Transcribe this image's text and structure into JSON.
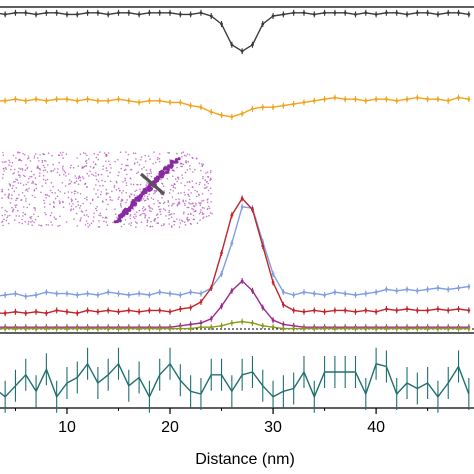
{
  "chart_data": {
    "type": "line",
    "xlabel": "Distance  (nm)",
    "ylabel": "",
    "xlim": [
      3.5,
      49.5
    ],
    "x_ticks": [
      10,
      20,
      30,
      40
    ],
    "grid": false,
    "legend": "none",
    "panels": [
      {
        "name": "top",
        "ylim": [
          0,
          1
        ],
        "series": [
          {
            "color": "#3a3a3a",
            "x": [
              3,
              4,
              5,
              6,
              7,
              8,
              9,
              10,
              11,
              12,
              13,
              14,
              15,
              16,
              17,
              18,
              19,
              20,
              21,
              22,
              23,
              24,
              25,
              26,
              27,
              28,
              29,
              30,
              31,
              32,
              33,
              34,
              35,
              36,
              37,
              38,
              39,
              40,
              41,
              42,
              43,
              44,
              45,
              46,
              47,
              48,
              49
            ],
            "y": [
              0.92,
              0.91,
              0.92,
              0.92,
              0.91,
              0.92,
              0.92,
              0.91,
              0.91,
              0.92,
              0.92,
              0.91,
              0.92,
              0.92,
              0.91,
              0.92,
              0.92,
              0.92,
              0.91,
              0.91,
              0.92,
              0.9,
              0.85,
              0.72,
              0.68,
              0.72,
              0.85,
              0.9,
              0.91,
              0.92,
              0.92,
              0.91,
              0.92,
              0.92,
              0.92,
              0.91,
              0.92,
              0.91,
              0.92,
              0.92,
              0.91,
              0.92,
              0.92,
              0.91,
              0.92,
              0.92,
              0.91
            ]
          },
          {
            "color": "#f2a31b",
            "x": [
              3,
              4,
              5,
              6,
              7,
              8,
              9,
              10,
              11,
              12,
              13,
              14,
              15,
              16,
              17,
              18,
              19,
              20,
              21,
              22,
              23,
              24,
              25,
              26,
              27,
              28,
              29,
              30,
              31,
              32,
              33,
              34,
              35,
              36,
              37,
              38,
              39,
              40,
              41,
              42,
              43,
              44,
              45,
              46,
              47,
              48,
              49
            ],
            "y": [
              0.37,
              0.37,
              0.38,
              0.37,
              0.38,
              0.37,
              0.38,
              0.38,
              0.37,
              0.38,
              0.37,
              0.37,
              0.38,
              0.37,
              0.36,
              0.37,
              0.37,
              0.36,
              0.36,
              0.34,
              0.33,
              0.3,
              0.28,
              0.27,
              0.29,
              0.32,
              0.33,
              0.33,
              0.34,
              0.35,
              0.36,
              0.37,
              0.38,
              0.39,
              0.38,
              0.38,
              0.37,
              0.38,
              0.38,
              0.37,
              0.38,
              0.39,
              0.38,
              0.38,
              0.37,
              0.39,
              0.38
            ]
          }
        ]
      },
      {
        "name": "middle",
        "ylim": [
          0,
          1
        ],
        "series": [
          {
            "color": "#7f9fe0",
            "x": [
              3,
              4,
              5,
              6,
              7,
              8,
              9,
              10,
              11,
              12,
              13,
              14,
              15,
              16,
              17,
              18,
              19,
              20,
              21,
              22,
              23,
              24,
              25,
              26,
              27,
              28,
              29,
              30,
              31,
              32,
              33,
              34,
              35,
              36,
              37,
              38,
              39,
              40,
              41,
              42,
              43,
              44,
              45,
              46,
              47,
              48,
              49
            ],
            "y": [
              0.24,
              0.25,
              0.26,
              0.24,
              0.25,
              0.27,
              0.26,
              0.26,
              0.25,
              0.26,
              0.25,
              0.27,
              0.26,
              0.25,
              0.26,
              0.25,
              0.27,
              0.26,
              0.25,
              0.27,
              0.26,
              0.3,
              0.4,
              0.62,
              0.88,
              0.87,
              0.63,
              0.4,
              0.27,
              0.25,
              0.27,
              0.26,
              0.25,
              0.27,
              0.26,
              0.25,
              0.26,
              0.27,
              0.29,
              0.28,
              0.29,
              0.28,
              0.29,
              0.3,
              0.29,
              0.3,
              0.31
            ]
          },
          {
            "color": "#c0262d",
            "x": [
              3,
              4,
              5,
              6,
              7,
              8,
              9,
              10,
              11,
              12,
              13,
              14,
              15,
              16,
              17,
              18,
              19,
              20,
              21,
              22,
              23,
              24,
              25,
              26,
              27,
              28,
              29,
              30,
              31,
              32,
              33,
              34,
              35,
              36,
              37,
              38,
              39,
              40,
              41,
              42,
              43,
              44,
              45,
              46,
              47,
              48,
              49
            ],
            "y": [
              0.12,
              0.12,
              0.13,
              0.12,
              0.13,
              0.12,
              0.14,
              0.13,
              0.12,
              0.14,
              0.13,
              0.14,
              0.13,
              0.14,
              0.13,
              0.14,
              0.14,
              0.13,
              0.15,
              0.16,
              0.2,
              0.3,
              0.55,
              0.82,
              0.94,
              0.86,
              0.6,
              0.34,
              0.18,
              0.14,
              0.13,
              0.14,
              0.13,
              0.14,
              0.14,
              0.13,
              0.14,
              0.13,
              0.15,
              0.14,
              0.15,
              0.14,
              0.14,
              0.15,
              0.14,
              0.15,
              0.14
            ]
          },
          {
            "color": "#9b2a8f",
            "x": [
              3,
              4,
              5,
              6,
              7,
              8,
              9,
              10,
              11,
              12,
              13,
              14,
              15,
              16,
              17,
              18,
              19,
              20,
              21,
              22,
              23,
              24,
              25,
              26,
              27,
              28,
              29,
              30,
              31,
              32,
              33,
              34,
              35,
              36,
              37,
              38,
              39,
              40,
              41,
              42,
              43,
              44,
              45,
              46,
              47,
              48,
              49
            ],
            "y": [
              0.02,
              0.02,
              0.02,
              0.02,
              0.02,
              0.02,
              0.02,
              0.02,
              0.02,
              0.02,
              0.02,
              0.02,
              0.02,
              0.02,
              0.02,
              0.02,
              0.02,
              0.02,
              0.03,
              0.04,
              0.05,
              0.08,
              0.17,
              0.28,
              0.35,
              0.28,
              0.16,
              0.07,
              0.04,
              0.03,
              0.02,
              0.02,
              0.02,
              0.02,
              0.02,
              0.02,
              0.02,
              0.02,
              0.02,
              0.02,
              0.02,
              0.02,
              0.02,
              0.02,
              0.02,
              0.02,
              0.02
            ]
          },
          {
            "color": "#8a9a1c",
            "x": [
              3,
              4,
              5,
              6,
              7,
              8,
              9,
              10,
              11,
              12,
              13,
              14,
              15,
              16,
              17,
              18,
              19,
              20,
              21,
              22,
              23,
              24,
              25,
              26,
              27,
              28,
              29,
              30,
              31,
              32,
              33,
              34,
              35,
              36,
              37,
              38,
              39,
              40,
              41,
              42,
              43,
              44,
              45,
              46,
              47,
              48,
              49
            ],
            "y": [
              0.01,
              0.01,
              0.01,
              0.01,
              0.01,
              0.01,
              0.01,
              0.01,
              0.01,
              0.01,
              0.01,
              0.01,
              0.01,
              0.01,
              0.01,
              0.01,
              0.01,
              0.01,
              0.01,
              0.01,
              0.02,
              0.02,
              0.03,
              0.05,
              0.06,
              0.05,
              0.03,
              0.02,
              0.01,
              0.01,
              0.01,
              0.01,
              0.01,
              0.01,
              0.01,
              0.01,
              0.01,
              0.01,
              0.01,
              0.01,
              0.01,
              0.01,
              0.01,
              0.01,
              0.01,
              0.01,
              0.01
            ]
          }
        ]
      },
      {
        "name": "bottom",
        "ylim": [
          0,
          1
        ],
        "series": [
          {
            "color": "#1f6f6f",
            "x": [
              3,
              4,
              5,
              6,
              7,
              8,
              9,
              10,
              11,
              12,
              13,
              14,
              15,
              16,
              17,
              18,
              19,
              20,
              21,
              22,
              23,
              24,
              25,
              26,
              27,
              28,
              29,
              30,
              31,
              32,
              33,
              34,
              35,
              36,
              37,
              38,
              39,
              40,
              41,
              42,
              43,
              44,
              45,
              46,
              47,
              48,
              49
            ],
            "y": [
              0.3,
              0.15,
              0.35,
              0.55,
              0.25,
              0.65,
              0.15,
              0.4,
              0.5,
              0.75,
              0.4,
              0.55,
              0.75,
              0.35,
              0.5,
              0.15,
              0.55,
              0.75,
              0.45,
              0.25,
              0.2,
              0.55,
              0.55,
              0.25,
              0.55,
              0.6,
              0.35,
              0.15,
              0.25,
              0.3,
              0.6,
              0.15,
              0.6,
              0.6,
              0.6,
              0.6,
              0.2,
              0.75,
              0.7,
              0.2,
              0.4,
              0.3,
              0.4,
              0.15,
              0.4,
              0.7,
              0.2
            ]
          }
        ]
      }
    ],
    "inset": {
      "type": "scatter",
      "cloud_color": "#b24fb8",
      "rod_color": "#8a2aa0",
      "marker_color": "#555555"
    }
  }
}
